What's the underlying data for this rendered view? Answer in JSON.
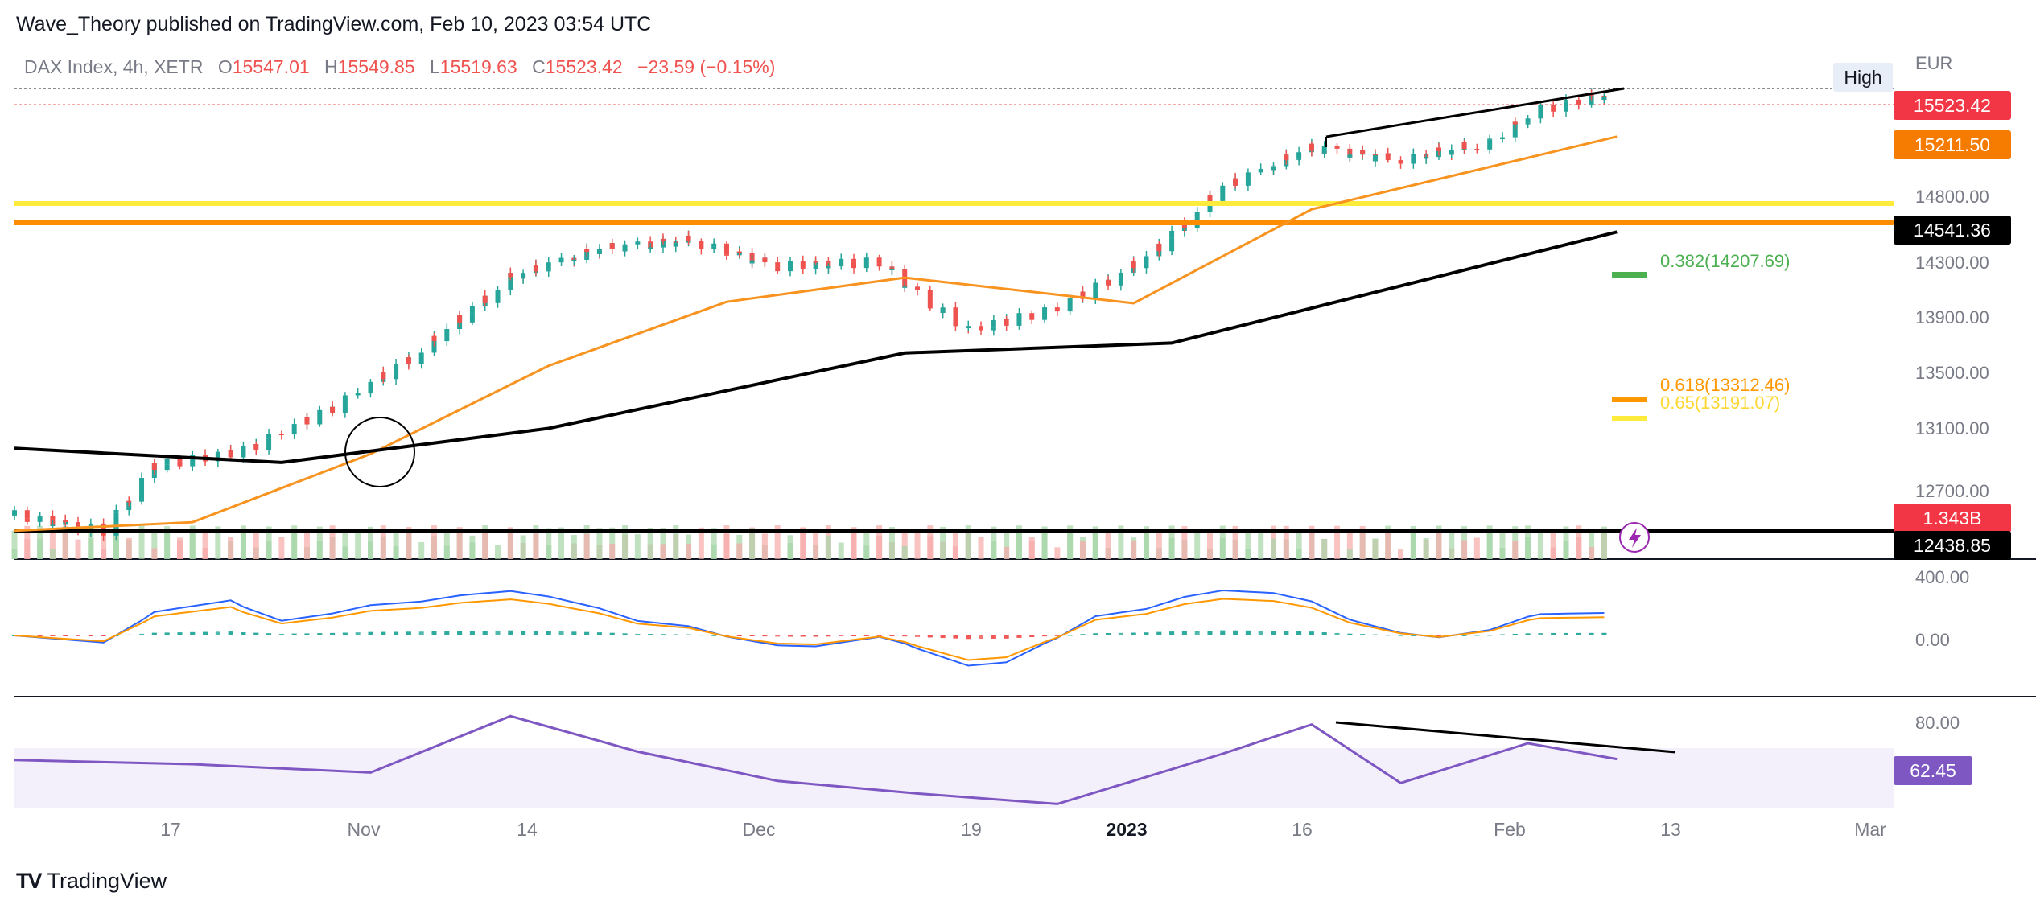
{
  "header": {
    "publisher": "Wave_Theory published on TradingView.com, Feb 10, 2023 03:54 UTC"
  },
  "legend": {
    "symbol": "DAX Index, 4h, XETR",
    "o_key": "O",
    "o_val": "15547.01",
    "h_key": "H",
    "h_val": "15549.85",
    "l_key": "L",
    "l_val": "15519.63",
    "c_key": "C",
    "c_val": "15523.42",
    "change": "−23.59 (−0.15%)"
  },
  "price_axis": {
    "currency": "EUR",
    "ticks": [
      "14800.00",
      "14300.00",
      "13900.00",
      "13500.00",
      "13100.00",
      "12700.00"
    ],
    "high_badge": "High"
  },
  "price_labels": {
    "last": "15523.42",
    "ema50": "15211.50",
    "ma200": "14541.36",
    "volume": "1.343B",
    "horizontal_line": "12438.85"
  },
  "fib_levels": [
    {
      "label": "0.382(14207.69)",
      "color": "#4caf50"
    },
    {
      "label": "0.618(13312.46)",
      "color": "#ff9800"
    },
    {
      "label": "0.65(13191.07)",
      "color": "#ffeb3b"
    }
  ],
  "macd_axis": {
    "ticks": [
      "400.00",
      "0.00"
    ]
  },
  "rsi_axis": {
    "ticks": [
      "80.00"
    ],
    "value": "62.45"
  },
  "time_axis": {
    "ticks": [
      {
        "label": "17",
        "bold": false
      },
      {
        "label": "Nov",
        "bold": false
      },
      {
        "label": "14",
        "bold": false
      },
      {
        "label": "Dec",
        "bold": false
      },
      {
        "label": "19",
        "bold": false
      },
      {
        "label": "2023",
        "bold": true
      },
      {
        "label": "16",
        "bold": false
      },
      {
        "label": "Feb",
        "bold": false
      },
      {
        "label": "13",
        "bold": false
      },
      {
        "label": "Mar",
        "bold": false
      }
    ]
  },
  "brand": {
    "name": "TradingView",
    "logo": "TV"
  },
  "colors": {
    "up": "#26a69a",
    "down": "#ef5350",
    "ema50": "#f7931e",
    "ma200": "#000000",
    "support_yellow": "#ffeb3b",
    "resistance_orange": "#ff8c00",
    "macd": "#2962ff",
    "signal": "#ff9800",
    "rsi": "#7e57c2"
  },
  "chart_data": {
    "type": "line",
    "title": "DAX Index, 4h, XETR",
    "x_range": [
      "2022-10-06",
      "2023-02-10"
    ],
    "ylim": [
      12300,
      15600
    ],
    "price_path": {
      "dates": [
        "2022-10-06",
        "2022-10-13",
        "2022-10-17",
        "2022-10-24",
        "2022-10-31",
        "2022-11-07",
        "2022-11-14",
        "2022-11-21",
        "2022-11-28",
        "2022-12-05",
        "2022-12-13",
        "2022-12-16",
        "2022-12-20",
        "2022-12-27",
        "2023-01-03",
        "2023-01-09",
        "2023-01-16",
        "2023-01-23",
        "2023-01-30",
        "2023-02-03",
        "2023-02-09"
      ],
      "close": [
        12550,
        12440,
        12900,
        13000,
        13300,
        13700,
        14220,
        14420,
        14480,
        14300,
        14330,
        14100,
        13850,
        14000,
        14350,
        14850,
        15130,
        15050,
        15170,
        15400,
        15523.42
      ]
    },
    "ema50": {
      "dates": [
        "2022-10-06",
        "2022-10-20",
        "2022-11-03",
        "2022-11-17",
        "2022-12-01",
        "2022-12-15",
        "2023-01-02",
        "2023-01-16",
        "2023-02-09"
      ],
      "values": [
        12440,
        12500,
        12980,
        13600,
        14050,
        14220,
        14040,
        14700,
        15211.5
      ]
    },
    "ma200": {
      "dates": [
        "2022-10-06",
        "2022-10-27",
        "2022-11-17",
        "2022-12-15",
        "2023-01-05",
        "2023-02-09"
      ],
      "values": [
        13020,
        12920,
        13160,
        13690,
        13760,
        14541.36
      ]
    },
    "horizontal_levels": [
      {
        "value": 14860,
        "color": "#ffeb3b"
      },
      {
        "value": 14680,
        "color": "#ff8c00"
      },
      {
        "value": 12438.85,
        "color": "#000000"
      }
    ],
    "rsi": {
      "dates": [
        "2022-10-06",
        "2022-10-20",
        "2022-11-03",
        "2022-11-14",
        "2022-11-24",
        "2022-12-05",
        "2022-12-16",
        "2022-12-27",
        "2023-01-09",
        "2023-01-16",
        "2023-01-23",
        "2023-02-02",
        "2023-02-09"
      ],
      "values": [
        62,
        60,
        56,
        83,
        66,
        52,
        46,
        41,
        65,
        79,
        51,
        70,
        62.45
      ]
    },
    "rsi_last": 62.45,
    "volume_last": "1.343B"
  }
}
